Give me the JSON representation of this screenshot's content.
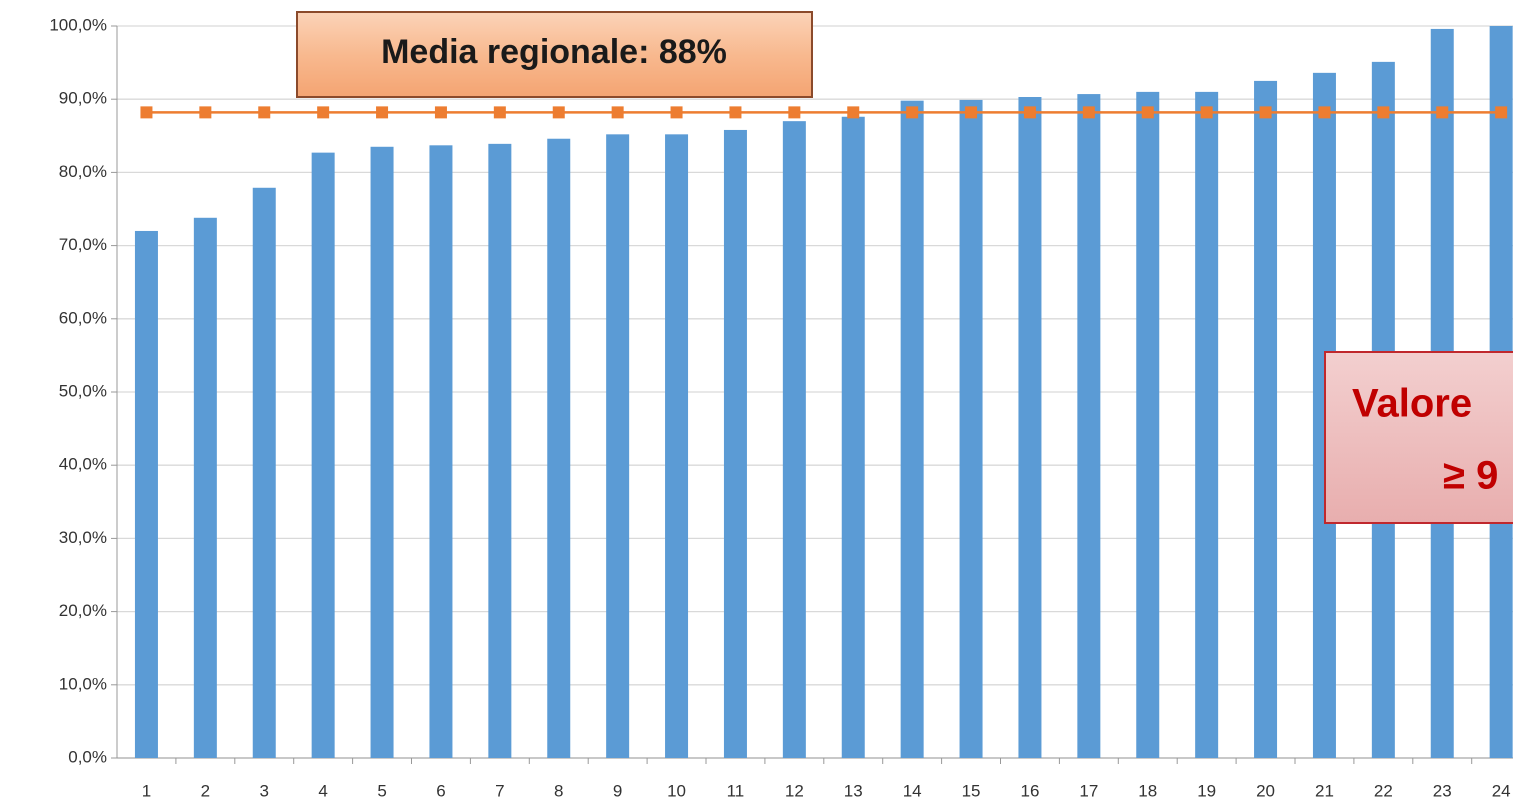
{
  "chart_data": {
    "type": "bar",
    "categories": [
      "1",
      "2",
      "3",
      "4",
      "5",
      "6",
      "7",
      "8",
      "9",
      "10",
      "11",
      "12",
      "13",
      "14",
      "15",
      "16",
      "17",
      "18",
      "19",
      "20",
      "21",
      "22",
      "23",
      "24"
    ],
    "series": [
      {
        "type": "bar",
        "color": "#5b9bd5",
        "values": [
          72.0,
          73.8,
          77.9,
          82.7,
          83.5,
          83.7,
          83.9,
          84.6,
          85.2,
          85.2,
          85.8,
          87.0,
          87.6,
          89.8,
          89.9,
          90.3,
          90.7,
          91.0,
          91.0,
          92.5,
          93.6,
          95.1,
          99.6,
          100.0
        ]
      },
      {
        "type": "line",
        "color": "#ed7d31",
        "values": [
          88.2,
          88.2,
          88.2,
          88.2,
          88.2,
          88.2,
          88.2,
          88.2,
          88.2,
          88.2,
          88.2,
          88.2,
          88.2,
          88.2,
          88.2,
          88.2,
          88.2,
          88.2,
          88.2,
          88.2,
          88.2,
          88.2,
          88.2,
          88.2
        ]
      }
    ],
    "ylim": [
      0,
      100
    ],
    "yticks": [
      {
        "value": 0,
        "label": "0,0%"
      },
      {
        "value": 10,
        "label": "10,0%"
      },
      {
        "value": 20,
        "label": "20,0%"
      },
      {
        "value": 30,
        "label": "30,0%"
      },
      {
        "value": 40,
        "label": "40,0%"
      },
      {
        "value": 50,
        "label": "50,0%"
      },
      {
        "value": 60,
        "label": "60,0%"
      },
      {
        "value": 70,
        "label": "70,0%"
      },
      {
        "value": 80,
        "label": "80,0%"
      },
      {
        "value": 90,
        "label": "90,0%"
      },
      {
        "value": 100,
        "label": "100,0%"
      }
    ],
    "grid": true,
    "annotations": [
      {
        "lines": [
          "Media regionale: 88%"
        ]
      },
      {
        "lines": [
          "Valore",
          "≥ 9"
        ]
      }
    ]
  }
}
